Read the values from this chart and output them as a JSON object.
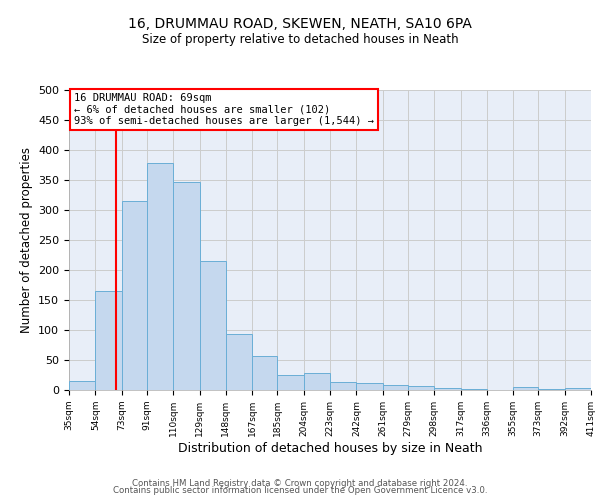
{
  "title": "16, DRUMMAU ROAD, SKEWEN, NEATH, SA10 6PA",
  "subtitle": "Size of property relative to detached houses in Neath",
  "xlabel": "Distribution of detached houses by size in Neath",
  "ylabel": "Number of detached properties",
  "bar_left_edges": [
    35,
    54,
    73,
    91,
    110,
    129,
    148,
    167,
    185,
    204,
    223,
    242,
    261,
    279,
    298,
    317,
    336,
    355,
    373,
    392
  ],
  "bar_heights": [
    15,
    165,
    315,
    378,
    346,
    215,
    94,
    57,
    25,
    29,
    14,
    11,
    9,
    6,
    4,
    1,
    0,
    5,
    1,
    3
  ],
  "bar_widths": [
    19,
    19,
    18,
    19,
    19,
    19,
    19,
    18,
    19,
    19,
    19,
    19,
    18,
    19,
    19,
    19,
    19,
    18,
    19,
    19
  ],
  "last_edge": 411,
  "tick_labels": [
    "35sqm",
    "54sqm",
    "73sqm",
    "91sqm",
    "110sqm",
    "129sqm",
    "148sqm",
    "167sqm",
    "185sqm",
    "204sqm",
    "223sqm",
    "242sqm",
    "261sqm",
    "279sqm",
    "298sqm",
    "317sqm",
    "336sqm",
    "355sqm",
    "373sqm",
    "392sqm",
    "411sqm"
  ],
  "bar_color": "#c5d8ee",
  "bar_edge_color": "#6aaed6",
  "grid_color": "#cccccc",
  "vline_x": 69,
  "vline_color": "red",
  "ylim": [
    0,
    500
  ],
  "yticks": [
    0,
    50,
    100,
    150,
    200,
    250,
    300,
    350,
    400,
    450,
    500
  ],
  "annotation_line1": "16 DRUMMAU ROAD: 69sqm",
  "annotation_line2": "← 6% of detached houses are smaller (102)",
  "annotation_line3": "93% of semi-detached houses are larger (1,544) →",
  "annotation_box_color": "red",
  "footer_line1": "Contains HM Land Registry data © Crown copyright and database right 2024.",
  "footer_line2": "Contains public sector information licensed under the Open Government Licence v3.0.",
  "bg_color": "#ffffff",
  "plot_bg_color": "#e8eef8"
}
